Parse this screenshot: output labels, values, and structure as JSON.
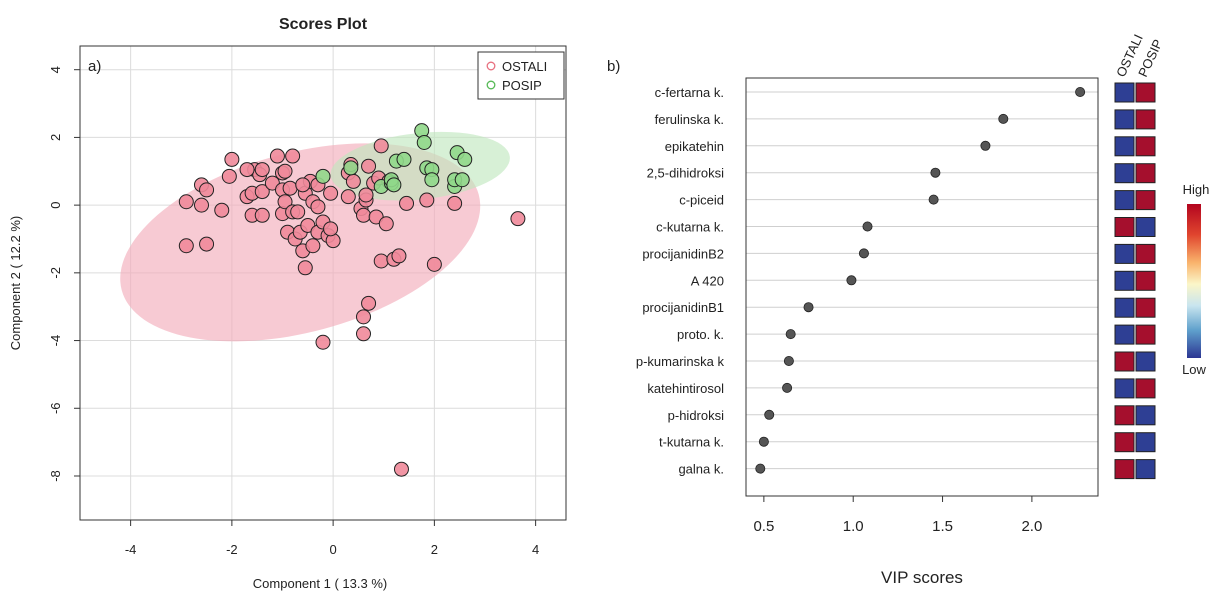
{
  "chart_data": [
    {
      "type": "scatter",
      "panel_label": "a)",
      "title": "Scores Plot",
      "xlabel": "Component 1 ( 13.3 %)",
      "ylabel": "Component 2 ( 12.2 %)",
      "xlim": [
        -5,
        4.6
      ],
      "ylim": [
        -9.3,
        4.7
      ],
      "xticks": [
        -4,
        -2,
        0,
        2,
        4
      ],
      "yticks": [
        -8,
        -6,
        -4,
        -2,
        0,
        2,
        4
      ],
      "grid": true,
      "legend_position": "top-right",
      "series": [
        {
          "name": "OSTALI",
          "color": "#e8707f",
          "fill": "#f08a9a",
          "points": [
            [
              -2.9,
              0.1
            ],
            [
              -2.9,
              -1.2
            ],
            [
              -2.6,
              0.6
            ],
            [
              -2.6,
              0
            ],
            [
              -2.5,
              -1.15
            ],
            [
              -2.5,
              0.45
            ],
            [
              -2.2,
              -0.15
            ],
            [
              -2.05,
              0.85
            ],
            [
              -2.0,
              1.35
            ],
            [
              -1.7,
              0.25
            ],
            [
              -1.6,
              0.35
            ],
            [
              -1.6,
              -0.3
            ],
            [
              -1.55,
              1.05
            ],
            [
              -1.45,
              0.9
            ],
            [
              -1.4,
              0.4
            ],
            [
              -1.4,
              1.05
            ],
            [
              -1.4,
              -0.3
            ],
            [
              -1.2,
              0.65
            ],
            [
              -1.1,
              1.45
            ],
            [
              -1.0,
              0.45
            ],
            [
              -1.0,
              -0.25
            ],
            [
              -1.0,
              0.95
            ],
            [
              -0.95,
              1.0
            ],
            [
              -0.95,
              0.1
            ],
            [
              -0.9,
              -0.8
            ],
            [
              -0.85,
              0.5
            ],
            [
              -0.8,
              1.45
            ],
            [
              -0.8,
              -0.2
            ],
            [
              -0.75,
              -1.0
            ],
            [
              -0.7,
              -0.2
            ],
            [
              -0.65,
              -0.8
            ],
            [
              -0.6,
              -1.35
            ],
            [
              -0.55,
              0.35
            ],
            [
              -0.5,
              -0.6
            ],
            [
              -0.45,
              0.7
            ],
            [
              -0.4,
              0.1
            ],
            [
              -0.4,
              -1.2
            ],
            [
              -0.3,
              -0.8
            ],
            [
              -0.3,
              -0.05
            ],
            [
              -0.2,
              -0.5
            ],
            [
              -0.1,
              -0.9
            ],
            [
              0.0,
              -1.05
            ],
            [
              -0.05,
              0.35
            ],
            [
              -0.05,
              -0.7
            ],
            [
              -0.3,
              0.6
            ],
            [
              -0.6,
              0.6
            ],
            [
              -0.55,
              -1.85
            ],
            [
              -0.2,
              -4.05
            ],
            [
              0.3,
              0.25
            ],
            [
              0.3,
              0.95
            ],
            [
              0.4,
              0.7
            ],
            [
              0.35,
              1.2
            ],
            [
              0.55,
              -0.1
            ],
            [
              0.6,
              -0.3
            ],
            [
              0.65,
              0.15
            ],
            [
              0.65,
              0.3
            ],
            [
              0.7,
              1.15
            ],
            [
              0.6,
              -3.3
            ],
            [
              0.6,
              -3.8
            ],
            [
              0.7,
              -2.9
            ],
            [
              0.8,
              0.65
            ],
            [
              0.85,
              -0.35
            ],
            [
              0.9,
              0.8
            ],
            [
              0.95,
              1.75
            ],
            [
              0.95,
              -1.65
            ],
            [
              1.05,
              -0.55
            ],
            [
              1.1,
              0.7
            ],
            [
              1.2,
              -1.6
            ],
            [
              1.3,
              -1.5
            ],
            [
              1.45,
              0.05
            ],
            [
              1.85,
              0.15
            ],
            [
              2.0,
              -1.75
            ],
            [
              2.4,
              0.05
            ],
            [
              3.65,
              -0.4
            ],
            [
              1.35,
              -7.8
            ],
            [
              -1.7,
              1.05
            ]
          ]
        },
        {
          "name": "POSIP",
          "color": "#55b955",
          "fill": "#90d88a",
          "points": [
            [
              -0.2,
              0.85
            ],
            [
              0.35,
              1.1
            ],
            [
              0.95,
              0.55
            ],
            [
              1.15,
              0.65
            ],
            [
              1.15,
              0.75
            ],
            [
              1.2,
              0.6
            ],
            [
              1.25,
              1.3
            ],
            [
              1.4,
              1.35
            ],
            [
              1.75,
              2.2
            ],
            [
              1.8,
              1.85
            ],
            [
              1.85,
              1.1
            ],
            [
              1.95,
              1.05
            ],
            [
              1.95,
              0.75
            ],
            [
              2.4,
              0.55
            ],
            [
              2.4,
              0.75
            ],
            [
              2.45,
              1.55
            ],
            [
              2.55,
              0.75
            ],
            [
              2.6,
              1.35
            ]
          ]
        }
      ],
      "ellipses": [
        {
          "series": "OSTALI",
          "center": [
            -0.65,
            -1.1
          ],
          "rx": 3.65,
          "ry": 2.65,
          "rotation_deg": -15,
          "color": "#f2a9b8"
        },
        {
          "series": "POSIP",
          "center": [
            1.72,
            1.15
          ],
          "rx": 1.78,
          "ry": 0.98,
          "rotation_deg": -6,
          "color": "#bfe6bd"
        }
      ]
    },
    {
      "type": "dot",
      "panel_label": "b)",
      "xlabel": "VIP scores",
      "xlim": [
        0.4,
        2.37
      ],
      "xticks": [
        0.5,
        1.0,
        1.5,
        2.0
      ],
      "xticklabels": [
        "0.5",
        "1.0",
        "1.5",
        "2.0"
      ],
      "categories": [
        "c-fertarna k.",
        "ferulinska k.",
        "epikatehin",
        "2,5-dihidroksi",
        "c-piceid",
        "c-kutarna k.",
        "procijanidinB2",
        "A 420",
        "procijanidinB1",
        "proto. k.",
        "p-kumarinska k",
        "katehintirosol",
        "p-hidroksi",
        "t-kutarna k.",
        "galna k."
      ],
      "values": [
        2.27,
        1.84,
        1.74,
        1.46,
        1.45,
        1.08,
        1.06,
        0.99,
        0.75,
        0.65,
        0.64,
        0.63,
        0.53,
        0.5,
        0.48
      ],
      "heat_columns": [
        "OSTALI",
        "POSIP"
      ],
      "heat": [
        [
          "low",
          "high"
        ],
        [
          "low",
          "high"
        ],
        [
          "low",
          "high"
        ],
        [
          "low",
          "high"
        ],
        [
          "low",
          "high"
        ],
        [
          "high",
          "low"
        ],
        [
          "low",
          "high"
        ],
        [
          "low",
          "high"
        ],
        [
          "low",
          "high"
        ],
        [
          "low",
          "high"
        ],
        [
          "high",
          "low"
        ],
        [
          "low",
          "high"
        ],
        [
          "high",
          "low"
        ],
        [
          "high",
          "low"
        ],
        [
          "high",
          "low"
        ]
      ],
      "colors": {
        "high": "#a50f2d",
        "low": "#2e3f94",
        "dot": "#555555"
      },
      "colorbar": {
        "top_label": "High",
        "bottom_label": "Low"
      }
    }
  ]
}
